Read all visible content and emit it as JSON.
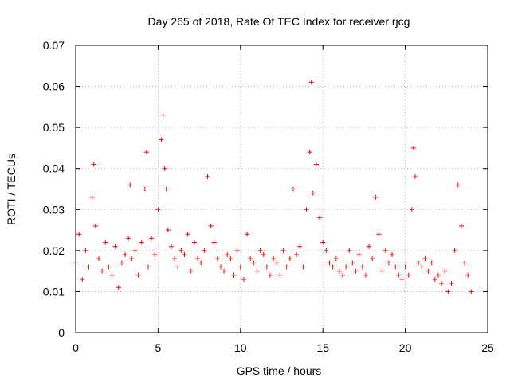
{
  "chart_data": {
    "type": "scatter",
    "title": "Day 265 of 2018, Rate Of TEC Index for receiver rjcg",
    "xlabel": "GPS time / hours",
    "ylabel": "ROTI / TECUs",
    "xlim": [
      0,
      25
    ],
    "ylim": [
      0,
      0.07
    ],
    "x_ticks": [
      "0",
      "5",
      "10",
      "15",
      "20",
      "25"
    ],
    "y_ticks": [
      "0",
      "0.01",
      "0.02",
      "0.03",
      "0.04",
      "0.05",
      "0.06",
      "0.07"
    ],
    "grid": true,
    "marker": "+",
    "series": [
      {
        "name": "ROTI",
        "color": "#ff0000",
        "x": [
          0.0,
          0.2,
          0.4,
          0.6,
          0.8,
          1.0,
          1.1,
          1.2,
          1.4,
          1.6,
          1.8,
          2.0,
          2.2,
          2.4,
          2.6,
          2.8,
          3.0,
          3.2,
          3.3,
          3.4,
          3.6,
          3.8,
          4.0,
          4.2,
          4.3,
          4.4,
          4.6,
          4.8,
          5.0,
          5.2,
          5.3,
          5.4,
          5.5,
          5.6,
          5.8,
          6.0,
          6.2,
          6.4,
          6.6,
          6.8,
          7.0,
          7.2,
          7.4,
          7.6,
          7.8,
          8.0,
          8.2,
          8.4,
          8.6,
          8.8,
          9.0,
          9.2,
          9.4,
          9.6,
          9.8,
          10.0,
          10.2,
          10.4,
          10.6,
          10.8,
          11.0,
          11.2,
          11.4,
          11.6,
          11.8,
          12.0,
          12.2,
          12.4,
          12.6,
          12.8,
          13.0,
          13.2,
          13.4,
          13.6,
          13.8,
          14.0,
          14.2,
          14.3,
          14.4,
          14.6,
          14.8,
          15.0,
          15.2,
          15.4,
          15.6,
          15.8,
          16.0,
          16.2,
          16.4,
          16.6,
          16.8,
          17.0,
          17.2,
          17.4,
          17.6,
          17.8,
          18.0,
          18.2,
          18.4,
          18.6,
          18.8,
          19.0,
          19.2,
          19.4,
          19.6,
          19.8,
          20.0,
          20.2,
          20.4,
          20.5,
          20.6,
          20.8,
          21.0,
          21.2,
          21.4,
          21.6,
          21.8,
          22.0,
          22.2,
          22.4,
          22.6,
          22.8,
          23.0,
          23.2,
          23.4,
          23.6,
          23.8,
          24.0
        ],
        "y": [
          0.017,
          0.024,
          0.013,
          0.02,
          0.016,
          0.033,
          0.041,
          0.026,
          0.018,
          0.015,
          0.022,
          0.016,
          0.014,
          0.021,
          0.011,
          0.017,
          0.019,
          0.023,
          0.036,
          0.018,
          0.02,
          0.014,
          0.022,
          0.035,
          0.044,
          0.016,
          0.023,
          0.019,
          0.03,
          0.047,
          0.053,
          0.04,
          0.035,
          0.025,
          0.021,
          0.018,
          0.016,
          0.02,
          0.019,
          0.024,
          0.015,
          0.022,
          0.018,
          0.017,
          0.02,
          0.038,
          0.026,
          0.022,
          0.018,
          0.016,
          0.015,
          0.019,
          0.018,
          0.014,
          0.02,
          0.016,
          0.013,
          0.024,
          0.018,
          0.017,
          0.015,
          0.02,
          0.019,
          0.016,
          0.014,
          0.018,
          0.017,
          0.014,
          0.02,
          0.016,
          0.018,
          0.035,
          0.019,
          0.021,
          0.016,
          0.03,
          0.044,
          0.061,
          0.034,
          0.041,
          0.028,
          0.022,
          0.02,
          0.017,
          0.016,
          0.018,
          0.015,
          0.014,
          0.016,
          0.02,
          0.017,
          0.015,
          0.019,
          0.016,
          0.014,
          0.021,
          0.018,
          0.033,
          0.024,
          0.015,
          0.02,
          0.017,
          0.019,
          0.016,
          0.014,
          0.013,
          0.016,
          0.014,
          0.03,
          0.045,
          0.038,
          0.017,
          0.016,
          0.018,
          0.015,
          0.017,
          0.013,
          0.014,
          0.012,
          0.015,
          0.01,
          0.012,
          0.02,
          0.036,
          0.026,
          0.017,
          0.014,
          0.01
        ]
      }
    ]
  }
}
